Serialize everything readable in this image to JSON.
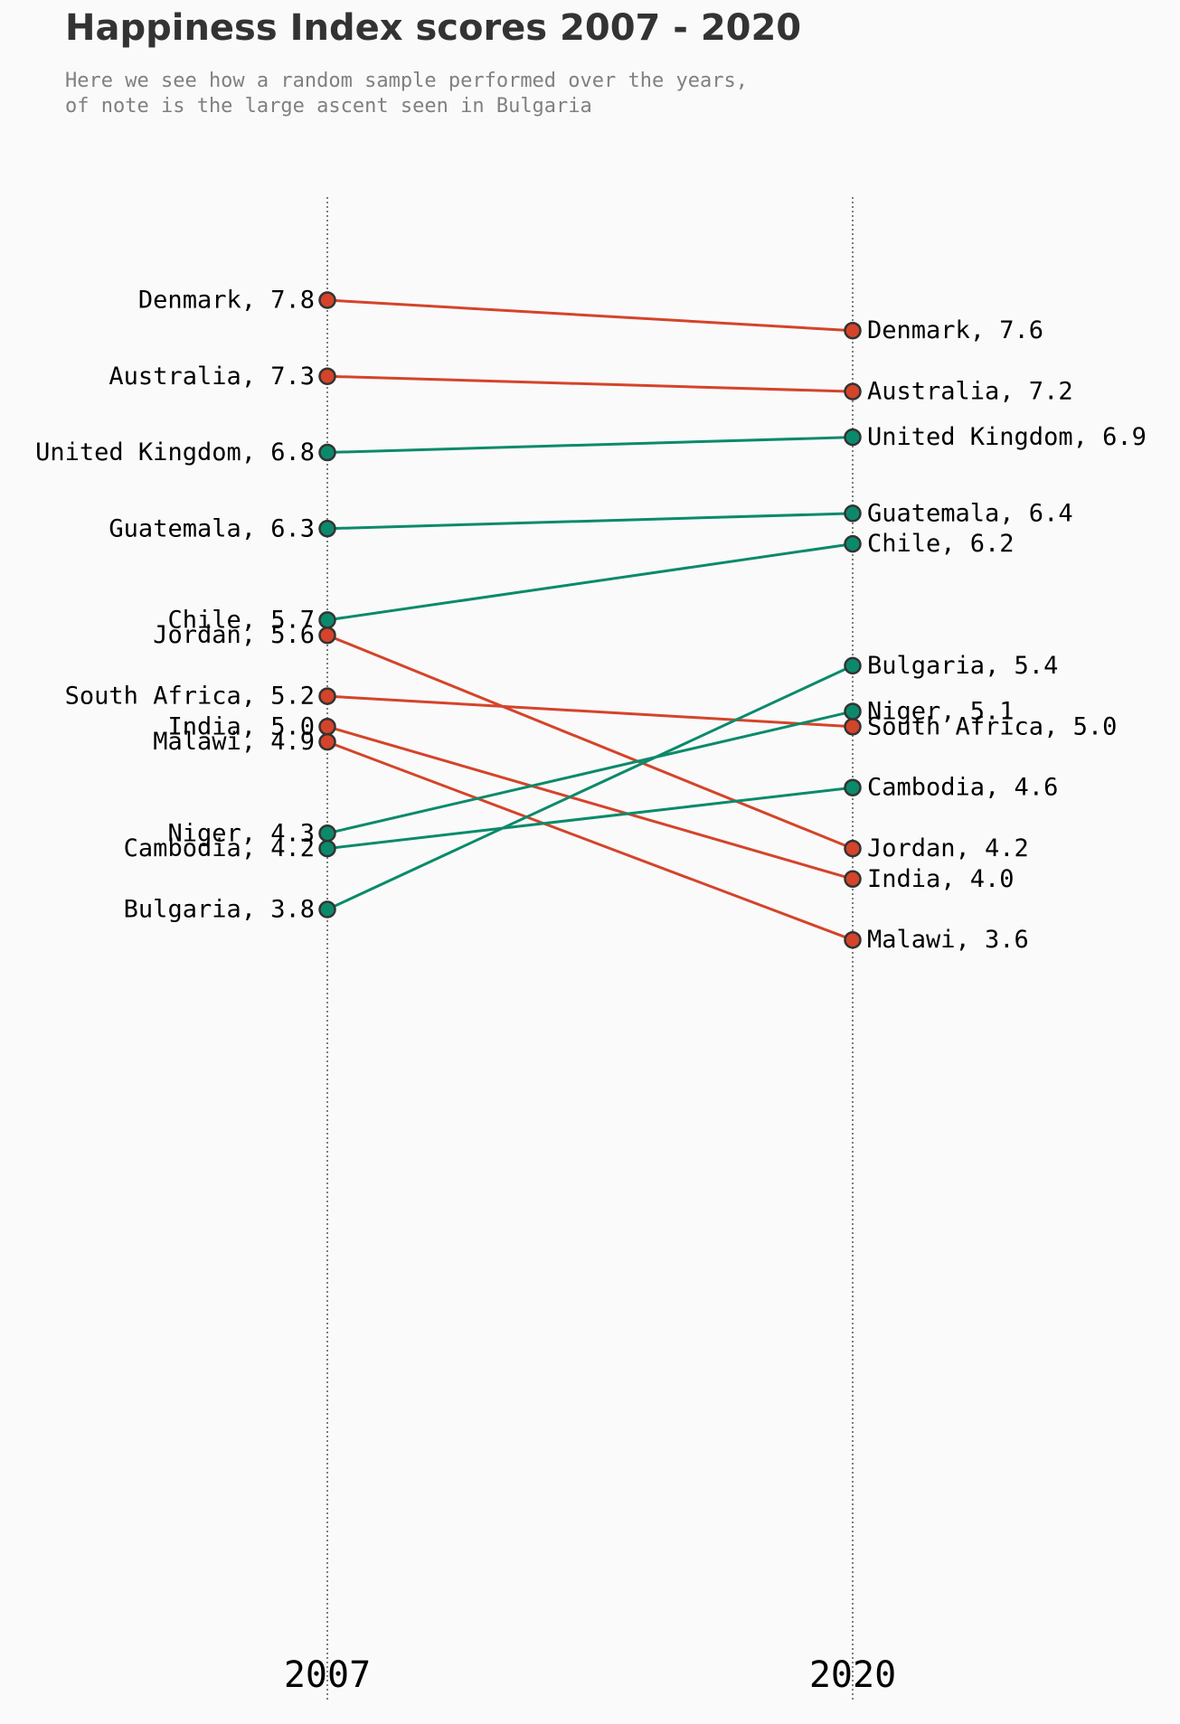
{
  "chart_data": {
    "type": "slope",
    "title": "Happiness Index scores 2007 - 2020",
    "subtitle_lines": [
      "Here we see how a random sample performed over the years,",
      "of note is the large ascent seen in Bulgaria"
    ],
    "x_categories": [
      "2007",
      "2020"
    ],
    "colors": {
      "increase": "#0b8a6b",
      "decrease": "#d4442a",
      "marker_edge": "#333333",
      "guide_line": "#555555",
      "background": "#fafafa"
    },
    "grid": false,
    "series": [
      {
        "name": "Denmark",
        "start": 7.8,
        "end": 7.6,
        "direction": "decrease"
      },
      {
        "name": "Australia",
        "start": 7.3,
        "end": 7.2,
        "direction": "decrease"
      },
      {
        "name": "United Kingdom",
        "start": 6.8,
        "end": 6.9,
        "direction": "increase"
      },
      {
        "name": "Guatemala",
        "start": 6.3,
        "end": 6.4,
        "direction": "increase"
      },
      {
        "name": "Chile",
        "start": 5.7,
        "end": 6.2,
        "direction": "increase"
      },
      {
        "name": "Jordan",
        "start": 5.6,
        "end": 4.2,
        "direction": "decrease"
      },
      {
        "name": "South Africa",
        "start": 5.2,
        "end": 5.0,
        "direction": "decrease"
      },
      {
        "name": "India",
        "start": 5.0,
        "end": 4.0,
        "direction": "decrease"
      },
      {
        "name": "Malawi",
        "start": 4.9,
        "end": 3.6,
        "direction": "decrease"
      },
      {
        "name": "Niger",
        "start": 4.3,
        "end": 5.1,
        "direction": "increase"
      },
      {
        "name": "Cambodia",
        "start": 4.2,
        "end": 4.6,
        "direction": "increase"
      },
      {
        "name": "Bulgaria",
        "start": 3.8,
        "end": 5.4,
        "direction": "increase"
      }
    ]
  }
}
